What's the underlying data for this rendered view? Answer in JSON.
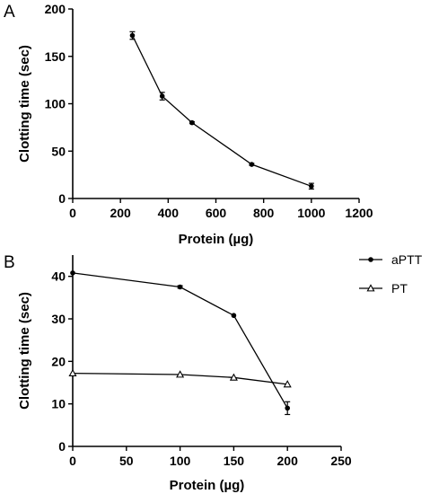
{
  "figure": {
    "panels": [
      "A",
      "B"
    ]
  },
  "chart_data": [
    {
      "type": "line",
      "panel": "A",
      "xlabel": "Protein (µg)",
      "ylabel": "Clotting time (sec)",
      "xlim": [
        0,
        1200
      ],
      "ylim": [
        0,
        200
      ],
      "xticks": [
        0,
        200,
        400,
        600,
        800,
        1000,
        1200
      ],
      "yticks": [
        0,
        50,
        100,
        150,
        200
      ],
      "grid": false,
      "series": [
        {
          "x": [
            250,
            375,
            500,
            750,
            1000
          ],
          "y": [
            172,
            108,
            80,
            36,
            13
          ],
          "err": [
            4,
            4,
            1,
            1,
            3
          ],
          "marker": "circle-filled"
        }
      ]
    },
    {
      "type": "line",
      "panel": "B",
      "xlabel": "Protein (µg)",
      "ylabel": "Clotting time (sec)",
      "xlim": [
        0,
        250
      ],
      "ylim": [
        0,
        45
      ],
      "xticks": [
        0,
        50,
        100,
        150,
        200,
        250
      ],
      "yticks": [
        0,
        10,
        20,
        30,
        40
      ],
      "grid": false,
      "legend_position": "outside-right",
      "series": [
        {
          "name": "aPTT",
          "x": [
            0,
            100,
            150,
            200
          ],
          "y": [
            40.8,
            37.5,
            30.8,
            9.0
          ],
          "err": [
            0,
            0.3,
            0,
            1.5
          ],
          "marker": "circle-filled"
        },
        {
          "name": "PT",
          "x": [
            0,
            100,
            150,
            200
          ],
          "y": [
            17.2,
            16.9,
            16.2,
            14.6
          ],
          "err": [
            0,
            0,
            0,
            0
          ],
          "marker": "triangle-open"
        }
      ]
    }
  ]
}
